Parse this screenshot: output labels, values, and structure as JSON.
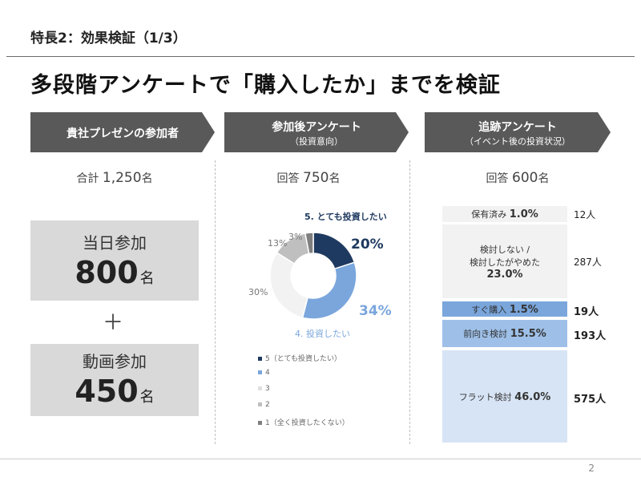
{
  "header": "特長2：効果検証（1/3）",
  "title": "多段階アンケートで「購入したか」までを検証",
  "columns": [
    {
      "title": "貴社プレゼンの参加者",
      "subtitle": ""
    },
    {
      "title": "参加後アンケート",
      "subtitle": "（投資意向）"
    },
    {
      "title": "追跡アンケート",
      "subtitle": "（イベント後の投資状況）"
    }
  ],
  "col1": {
    "total_label": "合計",
    "total_value": "1,250",
    "total_unit": "名",
    "box1_label": "当日参加",
    "box1_value": "800",
    "box1_unit": "名",
    "plus": "＋",
    "box2_label": "動画参加",
    "box2_value": "450",
    "box2_unit": "名"
  },
  "col2": {
    "resp_label": "回答",
    "resp_value": "750",
    "resp_unit": "名",
    "top_label": "5. とても投資したい",
    "second_label": "4. 投資したい",
    "slice_labels": [
      "20%",
      "34%",
      "30%",
      "13%",
      "3%"
    ]
  },
  "chart_data": {
    "type": "pie",
    "categories": [
      "5（とても投資したい）",
      "4",
      "3",
      "2",
      "1（全く投資したくない）"
    ],
    "values": [
      20,
      34,
      30,
      13,
      3
    ],
    "colors": [
      "#1f3a60",
      "#7aa6dc",
      "#f2f2f2",
      "#bfbfbf",
      "#7f7f7f"
    ]
  },
  "col3": {
    "resp_label": "回答",
    "resp_value": "600",
    "resp_unit": "名",
    "bars": [
      {
        "line1": "保有済み",
        "line2": "",
        "pct": "1.0%",
        "share": 0.01,
        "count": "12人",
        "color": "#f2f2f2",
        "bold": false
      },
      {
        "line1": "検討しない /",
        "line2": "検討したがやめた",
        "pct": "23.0%",
        "share": 0.23,
        "count": "287人",
        "color": "#f2f2f2",
        "bold": false
      },
      {
        "line1": "すぐ購入",
        "line2": "",
        "pct": "1.5%",
        "share": 0.015,
        "count": "19人",
        "color": "#7aa6dc",
        "bold": true
      },
      {
        "line1": "前向き検討",
        "line2": "",
        "pct": "15.5%",
        "share": 0.155,
        "count": "193人",
        "color": "#9ec0e8",
        "bold": true
      },
      {
        "line1": "フラット検討",
        "line2": "",
        "pct": "46.0%",
        "share": 0.46,
        "count": "575人",
        "color": "#d7e4f5",
        "bold": true
      }
    ]
  },
  "page_number": "2"
}
